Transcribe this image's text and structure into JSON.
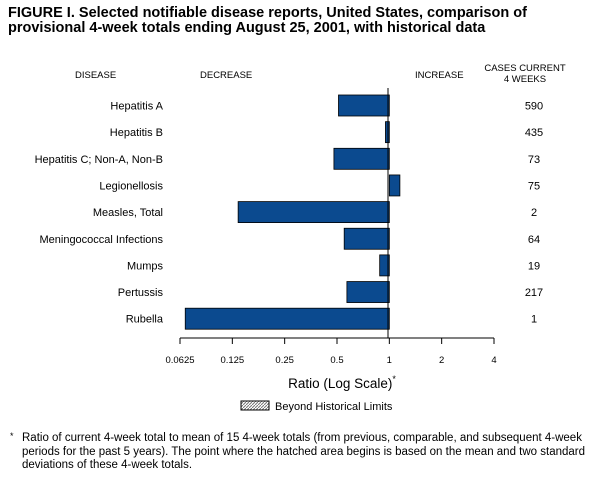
{
  "title_line1": "FIGURE I. Selected notifiable disease reports, United States, comparison of",
  "title_line2": "provisional 4-week totals ending August 25, 2001, with historical data",
  "headers": {
    "disease": "DISEASE",
    "decrease": "DECREASE",
    "increase": "INCREASE",
    "cases_line1": "CASES CURRENT",
    "cases_line2": "4 WEEKS"
  },
  "legend": {
    "label": "Beyond Historical Limits"
  },
  "footnote": {
    "marker": "*",
    "text": "Ratio of current 4-week total to mean of 15 4-week totals (from previous, comparable, and subsequent 4-week periods for the past 5 years). The point where the hatched area begins is based on the mean and two standard deviations of these 4-week totals."
  },
  "colors": {
    "bar": "#0b4a8f",
    "bar_edge": "#000000",
    "hatch": "#777777"
  },
  "chart_data": {
    "type": "bar",
    "orientation": "horizontal",
    "x_scale": "log2",
    "baseline": 1,
    "xlabel": "Ratio (Log Scale)",
    "xlabel_marker": "*",
    "xlim": [
      0.0625,
      4
    ],
    "xticks": [
      0.0625,
      0.125,
      0.25,
      0.5,
      1,
      2,
      4
    ],
    "xtick_labels": [
      "0.0625",
      "0.125",
      "0.25",
      "0.5",
      "1",
      "2",
      "4"
    ],
    "categories": [
      "Hepatitis A",
      "Hepatitis B",
      "Hepatitis C; Non-A, Non-B",
      "Legionellosis",
      "Measles, Total",
      "Meningococcal Infections",
      "Mumps",
      "Pertussis",
      "Rubella"
    ],
    "values": [
      0.51,
      0.95,
      0.48,
      1.15,
      0.135,
      0.55,
      0.88,
      0.57,
      0.067
    ],
    "cases": [
      "590",
      "435",
      "73",
      "75",
      "2",
      "64",
      "19",
      "217",
      "1"
    ],
    "beyond_historical_limits": [
      false,
      false,
      false,
      false,
      false,
      false,
      false,
      false,
      false
    ]
  }
}
